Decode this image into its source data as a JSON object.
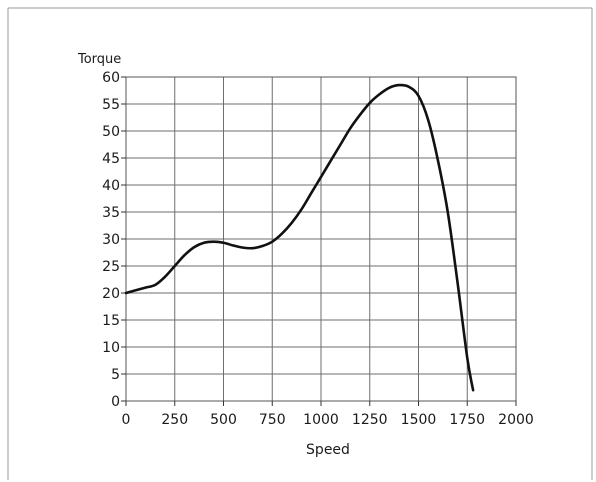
{
  "chart_data": {
    "type": "line",
    "title": "",
    "xlabel": "Speed",
    "ylabel": "Torque",
    "xlim": [
      0,
      2000
    ],
    "ylim": [
      0,
      60
    ],
    "xticks": [
      "0",
      "250",
      "500",
      "750",
      "1000",
      "1250",
      "1500",
      "1750",
      "2000"
    ],
    "yticks": [
      "0",
      "5",
      "10",
      "15",
      "20",
      "25",
      "30",
      "35",
      "40",
      "45",
      "50",
      "55",
      "60"
    ],
    "grid": true,
    "legend": "none",
    "series": [
      {
        "color": "#111111",
        "x": [
          0,
          50,
          100,
          150,
          200,
          250,
          300,
          350,
          400,
          450,
          500,
          550,
          600,
          650,
          700,
          750,
          800,
          850,
          900,
          950,
          1000,
          1050,
          1100,
          1150,
          1200,
          1250,
          1300,
          1350,
          1400,
          1450,
          1500,
          1550,
          1600,
          1650,
          1700,
          1750,
          1780
        ],
        "y": [
          20,
          20.5,
          21,
          21.5,
          23,
          25,
          27,
          28.5,
          29.3,
          29.5,
          29.3,
          28.8,
          28.4,
          28.3,
          28.7,
          29.5,
          31,
          33,
          35.5,
          38.5,
          41.5,
          44.5,
          47.5,
          50.5,
          53,
          55.2,
          56.8,
          58,
          58.5,
          58.2,
          56.5,
          52,
          44.5,
          35,
          22,
          8,
          2
        ]
      }
    ]
  }
}
